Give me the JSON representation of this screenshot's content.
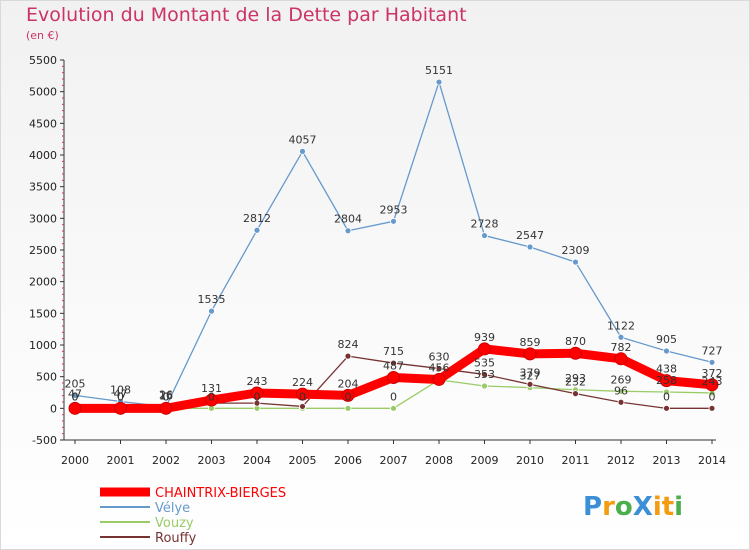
{
  "chart_data": {
    "type": "line",
    "title": "Evolution du Montant de la Dette par Habitant",
    "subtitle": "(en €)",
    "x": [
      "2000",
      "2001",
      "2002",
      "2003",
      "2004",
      "2005",
      "2006",
      "2007",
      "2008",
      "2009",
      "2010",
      "2011",
      "2012",
      "2013",
      "2014"
    ],
    "ylim": [
      -500,
      5500
    ],
    "yticks": [
      -500,
      0,
      500,
      1000,
      1500,
      2000,
      2500,
      3000,
      3500,
      4000,
      4500,
      5000,
      5500
    ],
    "grid": false,
    "legend_position": "bottom-left",
    "series": [
      {
        "name": "CHAINTRIX-BIERGES",
        "color": "#ff0000",
        "values": [
          0,
          0,
          0,
          131,
          243,
          224,
          204,
          487,
          456,
          939,
          859,
          870,
          782,
          438,
          372
        ],
        "labels": [
          "0",
          "0",
          "0",
          "131",
          "243",
          "224",
          "204",
          "487",
          "456",
          "939",
          "859",
          "870",
          "782",
          "438",
          "372"
        ]
      },
      {
        "name": "Vélye",
        "color": "#6699cc",
        "values": [
          205,
          108,
          26,
          1535,
          2812,
          4057,
          2804,
          2953,
          5151,
          2728,
          2547,
          2309,
          1122,
          905,
          727
        ],
        "labels": [
          "205",
          "108",
          "26",
          "1535",
          "2812",
          "4057",
          "2804",
          "2953",
          "5151",
          "2728",
          "2547",
          "2309",
          "1122",
          "905",
          "727"
        ]
      },
      {
        "name": "Vouzy",
        "color": "#99cc66",
        "values": [
          0,
          0,
          0,
          0,
          0,
          0,
          0,
          0,
          450,
          353,
          327,
          293,
          269,
          258,
          243
        ],
        "labels": [
          "0",
          "0",
          "0",
          "0",
          "0",
          "0",
          "0",
          "0",
          "",
          "353",
          "327",
          "293",
          "269",
          "258",
          "243"
        ]
      },
      {
        "name": "Rouffy",
        "color": "#773333",
        "values": [
          47,
          47,
          16,
          82,
          82,
          30,
          824,
          715,
          630,
          535,
          379,
          232,
          96,
          0,
          0
        ],
        "labels": [
          "47",
          "47",
          "16",
          "",
          "",
          "",
          "824",
          "715",
          "630",
          "535",
          "379",
          "232",
          "96",
          "0",
          "0"
        ]
      }
    ]
  },
  "brand": {
    "logo_text": "ProXiti"
  }
}
